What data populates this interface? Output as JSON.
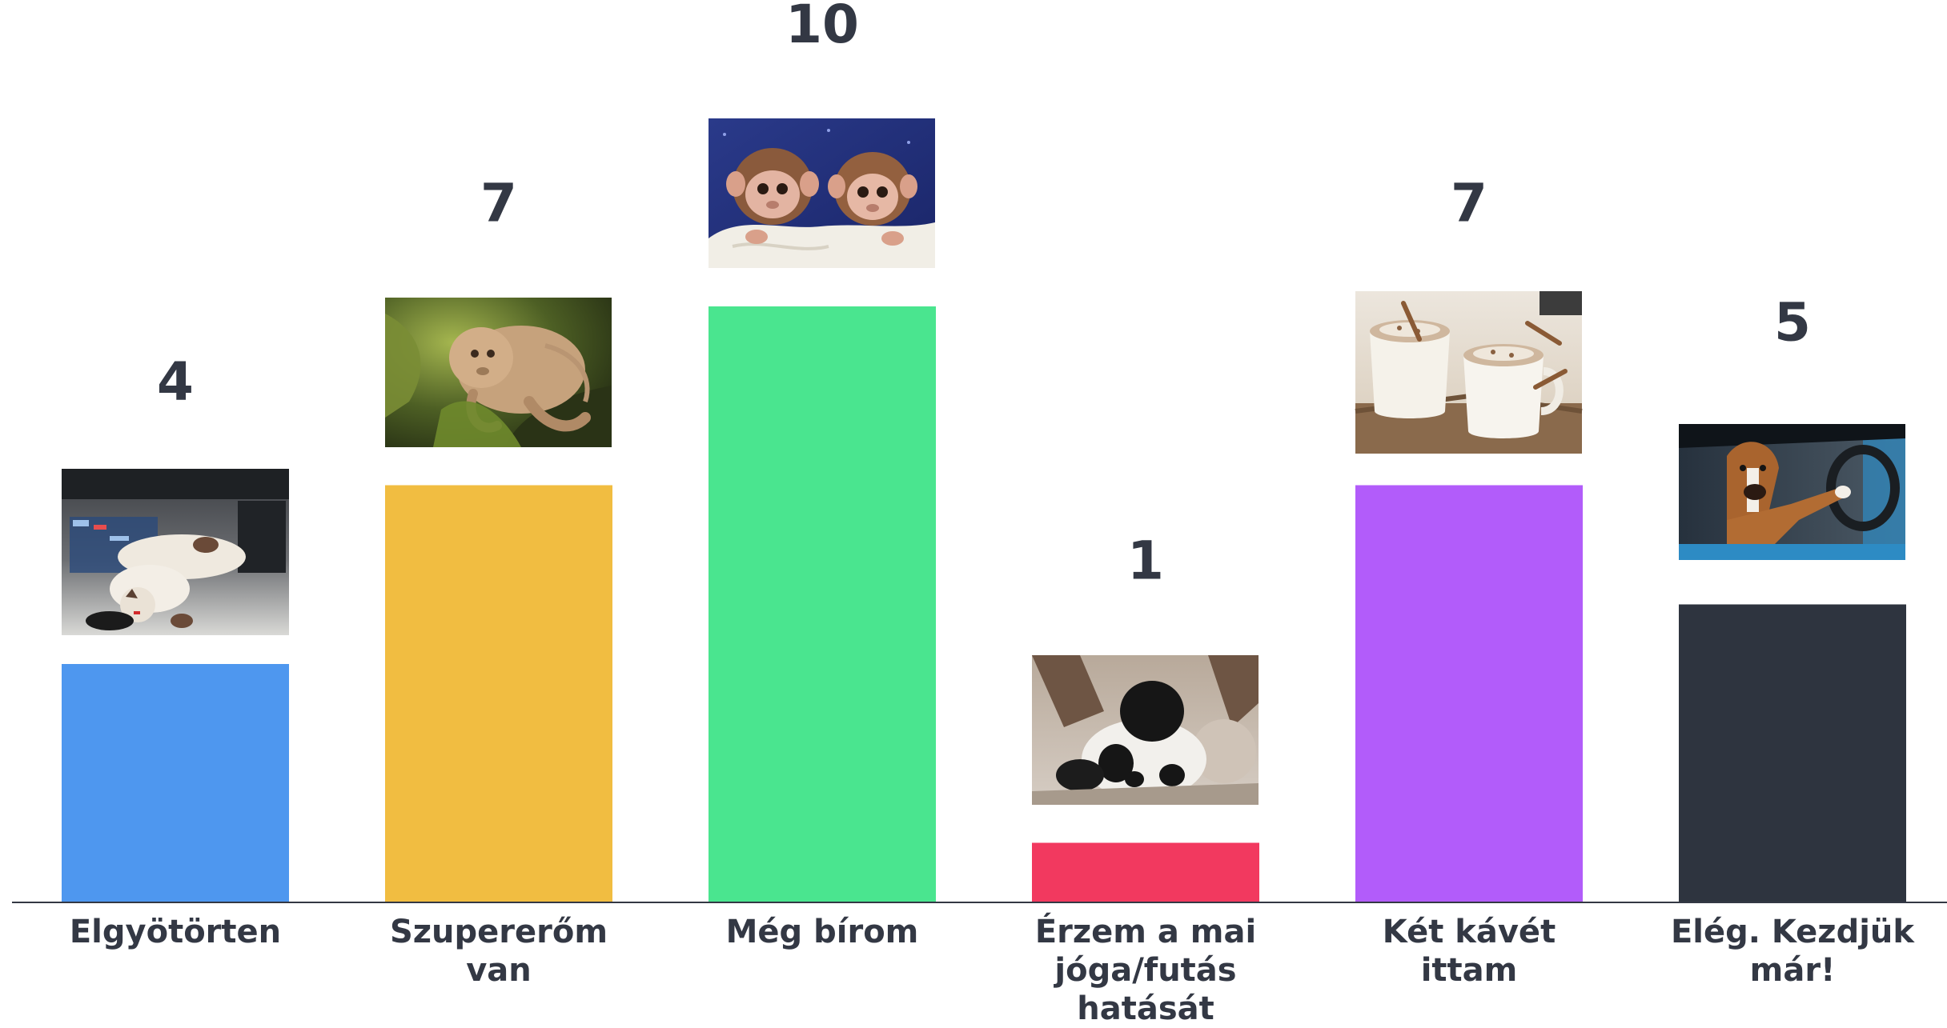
{
  "chart_data": {
    "type": "bar",
    "title": "",
    "xlabel": "",
    "ylabel": "",
    "ylim": [
      0,
      10
    ],
    "grid": false,
    "legend": "none",
    "categories": [
      [
        "Elgyötörten"
      ],
      [
        "Szupererőm",
        "van"
      ],
      [
        "Még bírom"
      ],
      [
        "Érzem a mai",
        "jóga/futás",
        "hatását"
      ],
      [
        "Két kávét",
        "ittam"
      ],
      [
        "Elég. Kezdjük",
        "már!"
      ]
    ],
    "values": [
      4,
      7,
      10,
      1,
      7,
      5
    ],
    "colors": [
      "#4e97ef",
      "#f1bd41",
      "#4ae58f",
      "#f2395f",
      "#b25cfa",
      "#2e343f"
    ],
    "bar_images": [
      "cat-on-desk-photo",
      "tardigrade-photo",
      "baby-monkeys-photo",
      "panda-photo",
      "two-coffee-mugs-photo",
      "dog-driving-car-photo"
    ]
  }
}
